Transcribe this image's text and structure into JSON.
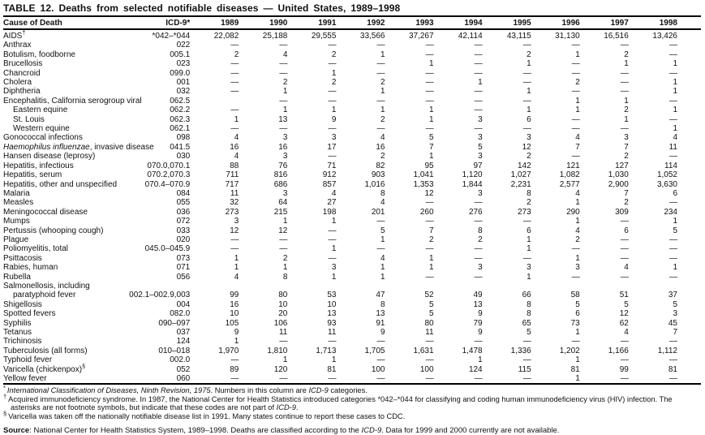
{
  "title": "TABLE 12. Deaths from selected notifiable diseases — United States, 1989–1998",
  "table": {
    "columns": [
      "Cause of Death",
      "ICD-9*",
      "1989",
      "1990",
      "1991",
      "1992",
      "1993",
      "1994",
      "1995",
      "1996",
      "1997",
      "1998"
    ],
    "rows": [
      {
        "cause": "AIDS",
        "sup": "†",
        "icd": "*042–*044",
        "indent": 0,
        "values": [
          "22,082",
          "25,188",
          "29,555",
          "33,566",
          "37,267",
          "42,114",
          "43,115",
          "31,130",
          "16,516",
          "13,426"
        ]
      },
      {
        "cause": "Anthrax",
        "icd": "022",
        "indent": 0,
        "values": [
          "—",
          "—",
          "—",
          "—",
          "—",
          "—",
          "—",
          "—",
          "—",
          "—"
        ]
      },
      {
        "cause": "Botulism, foodborne",
        "icd": "005.1",
        "indent": 0,
        "values": [
          "2",
          "4",
          "2",
          "1",
          "—",
          "—",
          "2",
          "1",
          "2",
          "—"
        ]
      },
      {
        "cause": "Brucellosis",
        "icd": "023",
        "indent": 0,
        "values": [
          "—",
          "—",
          "—",
          "—",
          "1",
          "—",
          "1",
          "—",
          "1",
          "1"
        ]
      },
      {
        "cause": "Chancroid",
        "icd": "099.0",
        "indent": 0,
        "values": [
          "—",
          "—",
          "1",
          "—",
          "—",
          "—",
          "—",
          "—",
          "—",
          "—"
        ]
      },
      {
        "cause": "Cholera",
        "icd": "001",
        "indent": 0,
        "values": [
          "—",
          "2",
          "2",
          "2",
          "—",
          "1",
          "—",
          "2",
          "—",
          "1"
        ]
      },
      {
        "cause": "Diphtheria",
        "icd": "032",
        "indent": 0,
        "values": [
          "—",
          "1",
          "—",
          "1",
          "—",
          "—",
          "1",
          "—",
          "—",
          "1"
        ]
      },
      {
        "cause": "Encephalitis, California serogroup viral",
        "icd": "062.5",
        "indent": 0,
        "values": [
          "",
          "—",
          "—",
          "—",
          "—",
          "—",
          "—",
          "1",
          "1",
          "—"
        ]
      },
      {
        "cause": "Eastern equine",
        "icd": "062.2",
        "indent": 1,
        "values": [
          "—",
          "1",
          "1",
          "1",
          "1",
          "—",
          "1",
          "1",
          "2",
          "1"
        ]
      },
      {
        "cause": "St. Louis",
        "icd": "062.3",
        "indent": 1,
        "values": [
          "1",
          "13",
          "9",
          "2",
          "1",
          "3",
          "6",
          "—",
          "1",
          "—"
        ]
      },
      {
        "cause": "Western equine",
        "icd": "062.1",
        "indent": 1,
        "values": [
          "—",
          "—",
          "—",
          "—",
          "—",
          "—",
          "—",
          "—",
          "—",
          "1"
        ]
      },
      {
        "cause": "Gonococcal infections",
        "icd": "098",
        "indent": 0,
        "values": [
          "4",
          "3",
          "3",
          "4",
          "5",
          "3",
          "3",
          "4",
          "3",
          "4"
        ]
      },
      {
        "cause_i": "Haemophilus influenzae",
        "cause": ", invasive disease",
        "icd": "041.5",
        "indent": 0,
        "values": [
          "16",
          "16",
          "17",
          "16",
          "7",
          "5",
          "12",
          "7",
          "7",
          "11"
        ]
      },
      {
        "cause": "Hansen disease (leprosy)",
        "icd": "030",
        "indent": 0,
        "values": [
          "4",
          "3",
          "—",
          "2",
          "1",
          "3",
          "2",
          "—",
          "2",
          "—"
        ]
      },
      {
        "cause": "Hepatitis, infectious",
        "icd": "070.0,070.1",
        "indent": 0,
        "values": [
          "88",
          "76",
          "71",
          "82",
          "95",
          "97",
          "142",
          "121",
          "127",
          "114"
        ]
      },
      {
        "cause": "Hepatitis, serum",
        "icd": "070.2,070.3",
        "indent": 0,
        "values": [
          "711",
          "816",
          "912",
          "903",
          "1,041",
          "1,120",
          "1,027",
          "1,082",
          "1,030",
          "1,052"
        ]
      },
      {
        "cause": "Hepatitis, other and unspecified",
        "icd": "070.4–070.9",
        "indent": 0,
        "values": [
          "717",
          "686",
          "857",
          "1,016",
          "1,353",
          "1,844",
          "2,231",
          "2,577",
          "2,900",
          "3,630"
        ]
      },
      {
        "cause": "Malaria",
        "icd": "084",
        "indent": 0,
        "values": [
          "11",
          "3",
          "4",
          "8",
          "12",
          "3",
          "8",
          "4",
          "7",
          "6"
        ]
      },
      {
        "cause": "Measles",
        "icd": "055",
        "indent": 0,
        "values": [
          "32",
          "64",
          "27",
          "4",
          "—",
          "—",
          "2",
          "1",
          "2",
          "—"
        ]
      },
      {
        "cause": "Meningococcal disease",
        "icd": "036",
        "indent": 0,
        "values": [
          "273",
          "215",
          "198",
          "201",
          "260",
          "276",
          "273",
          "290",
          "309",
          "234"
        ]
      },
      {
        "cause": "Mumps",
        "icd": "072",
        "indent": 0,
        "values": [
          "3",
          "1",
          "1",
          "—",
          "—",
          "—",
          "—",
          "1",
          "—",
          "1"
        ]
      },
      {
        "cause": "Pertussis (whooping cough)",
        "icd": "033",
        "indent": 0,
        "values": [
          "12",
          "12",
          "—",
          "5",
          "7",
          "8",
          "6",
          "4",
          "6",
          "5"
        ]
      },
      {
        "cause": "Plague",
        "icd": "020",
        "indent": 0,
        "values": [
          "—",
          "—",
          "—",
          "1",
          "2",
          "2",
          "1",
          "2",
          "—",
          "—"
        ]
      },
      {
        "cause": "Poliomyelitis, total",
        "icd": "045.0–045.9",
        "indent": 0,
        "values": [
          "—",
          "—",
          "1",
          "—",
          "—",
          "—",
          "1",
          "—",
          "—",
          "—"
        ]
      },
      {
        "cause": "Psittacosis",
        "icd": "073",
        "indent": 0,
        "values": [
          "1",
          "2",
          "—",
          "4",
          "1",
          "—",
          "—",
          "1",
          "—",
          "—"
        ]
      },
      {
        "cause": "Rabies, human",
        "icd": "071",
        "indent": 0,
        "values": [
          "1",
          "1",
          "3",
          "1",
          "1",
          "3",
          "3",
          "3",
          "4",
          "1"
        ]
      },
      {
        "cause": "Rubella",
        "icd": "056",
        "indent": 0,
        "values": [
          "4",
          "8",
          "1",
          "1",
          "—",
          "—",
          "1",
          "—",
          "—",
          "—"
        ]
      },
      {
        "cause": "Salmonellosis, including",
        "icd": "",
        "indent": 0,
        "values": [
          "",
          "",
          "",
          "",
          "",
          "",
          "",
          "",
          "",
          ""
        ]
      },
      {
        "cause": "paratyphoid fever",
        "icd": "002.1–002.9,003",
        "indent": 1,
        "values": [
          "99",
          "80",
          "53",
          "47",
          "52",
          "49",
          "66",
          "58",
          "51",
          "37"
        ]
      },
      {
        "cause": "Shigellosis",
        "icd": "004",
        "indent": 0,
        "values": [
          "16",
          "10",
          "10",
          "8",
          "5",
          "13",
          "8",
          "5",
          "5",
          "5"
        ]
      },
      {
        "cause": "Spotted fevers",
        "icd": "082.0",
        "indent": 0,
        "values": [
          "10",
          "20",
          "13",
          "13",
          "5",
          "9",
          "8",
          "6",
          "12",
          "3"
        ]
      },
      {
        "cause": "Syphilis",
        "icd": "090–097",
        "indent": 0,
        "values": [
          "105",
          "106",
          "93",
          "91",
          "80",
          "79",
          "65",
          "73",
          "62",
          "45"
        ]
      },
      {
        "cause": "Tetanus",
        "icd": "037",
        "indent": 0,
        "values": [
          "9",
          "11",
          "11",
          "9",
          "11",
          "9",
          "5",
          "1",
          "4",
          "7"
        ]
      },
      {
        "cause": "Trichinosis",
        "icd": "124",
        "indent": 0,
        "values": [
          "1",
          "—",
          "—",
          "—",
          "—",
          "—",
          "—",
          "—",
          "—",
          "—"
        ]
      },
      {
        "cause": "Tuberculosis (all forms)",
        "icd": "010–018",
        "indent": 0,
        "values": [
          "1,970",
          "1,810",
          "1,713",
          "1,705",
          "1,631",
          "1,478",
          "1,336",
          "1,202",
          "1,166",
          "1,112"
        ]
      },
      {
        "cause": "Typhoid fever",
        "icd": "002.0",
        "indent": 0,
        "values": [
          "—",
          "1",
          "1",
          "—",
          "—",
          "1",
          "—",
          "1",
          "—",
          "—"
        ]
      },
      {
        "cause": "Varicella (chickenpox)",
        "sup": "§",
        "icd": "052",
        "indent": 0,
        "values": [
          "89",
          "120",
          "81",
          "100",
          "100",
          "124",
          "115",
          "81",
          "99",
          "81"
        ]
      },
      {
        "cause": "Yellow fever",
        "icd": "060",
        "indent": 0,
        "values": [
          "—",
          "—",
          "—",
          "—",
          "—",
          "—",
          "—",
          "1",
          "—",
          "—"
        ]
      }
    ]
  },
  "footnotes": [
    {
      "marker": "*",
      "segments": [
        {
          "t": "International Classification of Diseases, Ninth Revision, 1975",
          "i": true
        },
        {
          "t": ". Numbers in this column are "
        },
        {
          "t": "ICD-9",
          "i": true
        },
        {
          "t": " categories."
        }
      ]
    },
    {
      "marker": "†",
      "segments": [
        {
          "t": "Acquired immunodeficiency syndrome.  In 1987, the National Center for Health Statistics introduced categories *042–*044 for classifying and coding human immunodeficiency virus (HIV) infection. The asterisks are not footnote symbols, but indicate that these codes are not part of "
        },
        {
          "t": "ICD-9",
          "i": true
        },
        {
          "t": "."
        }
      ]
    },
    {
      "marker": "§",
      "segments": [
        {
          "t": "Varicella was taken off the nationally notifiable disease list in 1991. Many states continue to report these cases to CDC."
        }
      ]
    }
  ],
  "source": {
    "label": "Source",
    "segments": [
      {
        "t": ": National Center for Health Statistics System, 1989–1998. Deaths are classified according to the "
      },
      {
        "t": "ICD-9",
        "i": true
      },
      {
        "t": ". Data for 1999 and 2000 currently are not available."
      }
    ]
  }
}
